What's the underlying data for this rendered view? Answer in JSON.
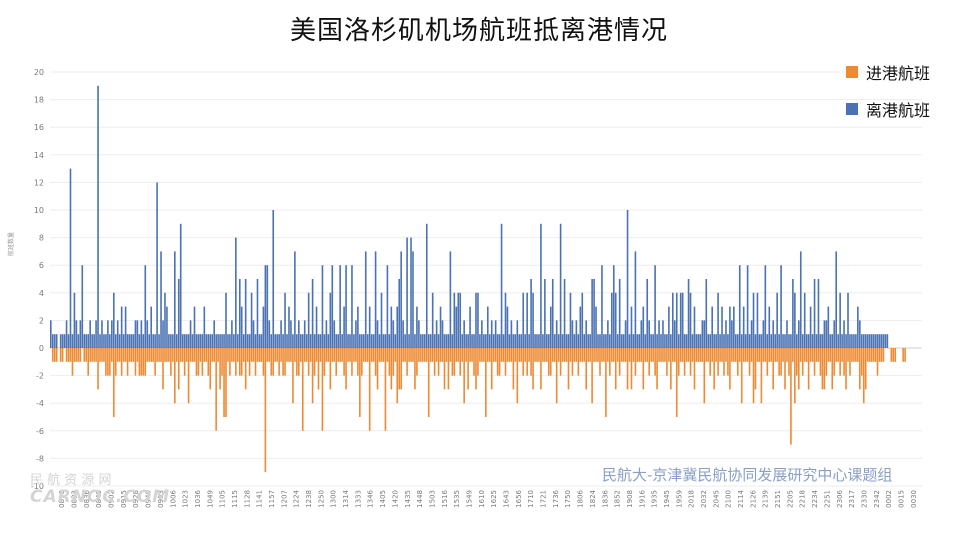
{
  "title": "美国洛杉矶机场航班抵离港情况",
  "footer_note": "民航大-京津冀民航协同发展研究中心课题组",
  "watermark": {
    "line1": "民 航 资 源 网",
    "line2": "CARNOC.COM"
  },
  "chart_data": {
    "type": "bar",
    "title": "美国洛杉矶机场航班抵离港情况",
    "ylabel": "航班数量",
    "xlabel": "",
    "ylim": [
      -10,
      20
    ],
    "yticks": [
      -10,
      -8,
      -6,
      -4,
      -2,
      0,
      2,
      4,
      6,
      8,
      10,
      12,
      14,
      16,
      18,
      20
    ],
    "grid": true,
    "legend_position": "top-right",
    "x_tick_labels": [
      "0810",
      "0823",
      "0836",
      "0849",
      "0902",
      "0915",
      "0928",
      "0940",
      "0953",
      "1006",
      "1023",
      "1036",
      "1049",
      "1105",
      "1115",
      "1128",
      "1141",
      "1157",
      "1207",
      "1224",
      "1238",
      "1250",
      "1300",
      "1314",
      "1333",
      "1346",
      "1405",
      "1420",
      "1435",
      "1448",
      "1503",
      "1516",
      "1535",
      "1549",
      "1610",
      "1625",
      "1643",
      "1656",
      "1710",
      "1721",
      "1736",
      "1750",
      "1806",
      "1824",
      "1836",
      "1852",
      "1908",
      "1916",
      "1935",
      "1945",
      "1959",
      "2018",
      "2032",
      "2045",
      "2100",
      "2114",
      "2126",
      "2139",
      "2151",
      "2205",
      "2218",
      "2234",
      "2251",
      "2306",
      "2317",
      "2330",
      "2342",
      "0002",
      "0015",
      "0030"
    ],
    "series": [
      {
        "name": "进港航班",
        "color": "#ed8b35",
        "values": [
          0,
          -1,
          -1,
          -1,
          0,
          -1,
          -1,
          0,
          -1,
          -1,
          -1,
          -2,
          -1,
          -1,
          -1,
          -1,
          0,
          -1,
          -1,
          -2,
          -1,
          -1,
          -1,
          -1,
          -3,
          -1,
          -1,
          -1,
          -2,
          -2,
          -2,
          -1,
          -5,
          -2,
          -1,
          -1,
          -2,
          -1,
          -1,
          -2,
          -1,
          -1,
          -1,
          -2,
          -1,
          -2,
          -2,
          -2,
          -2,
          -1,
          -1,
          -1,
          -1,
          -2,
          -1,
          -1,
          -1,
          -3,
          -1,
          -1,
          -1,
          -2,
          -1,
          -4,
          -1,
          -3,
          -1,
          -1,
          -2,
          -1,
          -4,
          -1,
          -1,
          -1,
          -2,
          -2,
          -1,
          -2,
          -1,
          -1,
          -2,
          -3,
          -1,
          -1,
          -6,
          -1,
          -3,
          -2,
          -5,
          -5,
          -1,
          -2,
          -1,
          -1,
          -2,
          -1,
          -2,
          -2,
          -1,
          -3,
          -1,
          -2,
          -1,
          -1,
          -2,
          -1,
          -1,
          -1,
          -2,
          -9,
          -1,
          -1,
          -2,
          -2,
          -1,
          -1,
          -2,
          -1,
          -2,
          -2,
          -1,
          -1,
          -1,
          -4,
          -1,
          -2,
          -2,
          -1,
          -6,
          -1,
          -1,
          -2,
          -1,
          -4,
          -2,
          -1,
          -3,
          -1,
          -6,
          -2,
          -1,
          -1,
          -3,
          -1,
          -1,
          -2,
          -1,
          -1,
          -1,
          -2,
          -3,
          -1,
          -1,
          -2,
          -1,
          -1,
          -2,
          -5,
          -2,
          -1,
          -1,
          -1,
          -6,
          -1,
          -1,
          -2,
          -3,
          -1,
          -1,
          -1,
          -6,
          -1,
          -2,
          -3,
          -2,
          -1,
          -4,
          -3,
          -3,
          -1,
          -1,
          -2,
          -1,
          -1,
          -1,
          -3,
          -2,
          -1,
          -1,
          -1,
          -1,
          -1,
          -5,
          -1,
          -1,
          -2,
          -1,
          -2,
          -1,
          -1,
          -3,
          -1,
          -3,
          -1,
          -2,
          -2,
          -1,
          -1,
          -2,
          -1,
          -4,
          -1,
          -3,
          -1,
          -1,
          -2,
          -3,
          -2,
          -1,
          -1,
          -1,
          -5,
          -1,
          -1,
          -3,
          -1,
          -1,
          -2,
          -2,
          -1,
          -1,
          -2,
          -1,
          -1,
          -1,
          -3,
          -1,
          -4,
          -1,
          -1,
          -2,
          -1,
          -2,
          -1,
          -2,
          -3,
          -1,
          -1,
          -1,
          -3,
          -1,
          -1,
          -1,
          -2,
          -2,
          -1,
          -1,
          -4,
          -1,
          -2,
          -1,
          -1,
          -1,
          -3,
          -1,
          -2,
          -1,
          -1,
          -2,
          -1,
          -1,
          -1,
          -3,
          -1,
          -1,
          -4,
          -1,
          -1,
          -1,
          -2,
          -1,
          -1,
          -5,
          -1,
          -2,
          -1,
          -1,
          -3,
          -1,
          -2,
          -1,
          -1,
          -1,
          -3,
          -1,
          -3,
          -1,
          -2,
          -1,
          -1,
          -1,
          -3,
          -1,
          -1,
          -2,
          -1,
          -1,
          -2,
          -3,
          -1,
          -1,
          -1,
          -1,
          -2,
          -1,
          -3,
          -1,
          -1,
          -5,
          -2,
          -1,
          -1,
          -2,
          -1,
          -1,
          -2,
          -1,
          -3,
          -1,
          -1,
          -1,
          -1,
          -4,
          -1,
          -1,
          -2,
          -1,
          -3,
          -1,
          -2,
          -1,
          -1,
          -2,
          -1,
          -2,
          -3,
          -1,
          -1,
          -1,
          -2,
          -1,
          -4,
          -1,
          -1,
          -1,
          -2,
          -1,
          -4,
          -3,
          -1,
          -1,
          -4,
          -1,
          -1,
          -2,
          -1,
          -1,
          -3,
          -1,
          -1,
          -2,
          -2,
          -1,
          -3,
          -1,
          -2,
          -7,
          -1,
          -4,
          -2,
          -3,
          -1,
          -2,
          -1,
          -1,
          -3,
          -1,
          -1,
          -2,
          -1,
          -1,
          -2,
          -3,
          -3,
          -2,
          -1,
          -1,
          -3,
          -2,
          -1,
          -1,
          -2,
          -1,
          -2,
          -3,
          -1,
          -2,
          -1,
          -1,
          -1,
          -1,
          -3,
          -2,
          -4,
          -3,
          -1,
          -1,
          -1,
          -1,
          -1,
          -2,
          -1,
          -1,
          -1,
          0,
          0,
          0,
          -1,
          -1,
          -1,
          0,
          0,
          0,
          -1,
          -1,
          0,
          0,
          0,
          0,
          0,
          0,
          0,
          0
        ],
        "note": "one bar per minute interval across the day; values read approximately from the axis"
      },
      {
        "name": "离港航班",
        "color": "#4a72b5",
        "values": [
          2,
          1,
          1,
          1,
          0,
          1,
          1,
          1,
          2,
          1,
          13,
          1,
          4,
          2,
          1,
          2,
          6,
          1,
          1,
          1,
          2,
          1,
          1,
          2,
          19,
          1,
          2,
          1,
          1,
          2,
          1,
          2,
          4,
          1,
          2,
          1,
          3,
          1,
          3,
          1,
          1,
          1,
          1,
          2,
          2,
          1,
          2,
          1,
          6,
          2,
          1,
          3,
          1,
          1,
          12,
          1,
          7,
          2,
          4,
          3,
          1,
          1,
          1,
          7,
          1,
          5,
          9,
          1,
          1,
          1,
          1,
          2,
          1,
          3,
          1,
          1,
          1,
          1,
          3,
          1,
          1,
          1,
          1,
          2,
          1,
          1,
          1,
          1,
          1,
          4,
          1,
          1,
          2,
          1,
          8,
          1,
          5,
          3,
          1,
          5,
          1,
          1,
          4,
          2,
          1,
          5,
          1,
          1,
          3,
          6,
          6,
          2,
          1,
          10,
          1,
          1,
          1,
          2,
          1,
          4,
          1,
          3,
          2,
          1,
          7,
          1,
          2,
          1,
          1,
          2,
          1,
          4,
          1,
          5,
          1,
          3,
          1,
          1,
          6,
          1,
          2,
          1,
          4,
          6,
          2,
          1,
          1,
          6,
          1,
          3,
          6,
          1,
          1,
          6,
          1,
          2,
          3,
          1,
          1,
          1,
          7,
          1,
          3,
          1,
          1,
          7,
          2,
          1,
          4,
          1,
          1,
          6,
          1,
          3,
          2,
          1,
          3,
          5,
          7,
          2,
          1,
          8,
          1,
          8,
          7,
          1,
          3,
          2,
          1,
          1,
          1,
          9,
          1,
          1,
          4,
          1,
          2,
          1,
          3,
          2,
          1,
          1,
          1,
          7,
          1,
          4,
          3,
          4,
          4,
          1,
          2,
          1,
          1,
          3,
          1,
          1,
          4,
          4,
          1,
          2,
          1,
          1,
          3,
          1,
          2,
          1,
          2,
          1,
          1,
          9,
          1,
          4,
          3,
          1,
          2,
          1,
          1,
          2,
          1,
          1,
          4,
          1,
          4,
          1,
          5,
          4,
          1,
          1,
          1,
          9,
          1,
          5,
          1,
          1,
          3,
          5,
          1,
          2,
          1,
          9,
          1,
          5,
          1,
          1,
          4,
          2,
          1,
          2,
          1,
          3,
          4,
          1,
          2,
          1,
          1,
          5,
          5,
          3,
          1,
          1,
          6,
          1,
          1,
          2,
          1,
          4,
          6,
          4,
          1,
          5,
          1,
          1,
          2,
          10,
          1,
          3,
          1,
          7,
          1,
          1,
          2,
          3,
          1,
          5,
          2,
          1,
          1,
          6,
          1,
          2,
          1,
          2,
          1,
          1,
          3,
          1,
          4,
          2,
          4,
          1,
          4,
          4,
          1,
          1,
          5,
          4,
          1,
          3,
          1,
          1,
          1,
          2,
          2,
          5,
          1,
          1,
          3,
          1,
          1,
          4,
          1,
          3,
          1,
          2,
          1,
          3,
          2,
          3,
          1,
          1,
          6,
          1,
          3,
          1,
          6,
          1,
          2,
          4,
          1,
          4,
          1,
          1,
          2,
          6,
          1,
          3,
          1,
          2,
          1,
          4,
          1,
          6,
          1,
          1,
          2,
          1,
          1,
          5,
          4,
          1,
          2,
          7,
          1,
          4,
          1,
          1,
          3,
          1,
          5,
          1,
          5,
          1,
          1,
          2,
          2,
          3,
          1,
          1,
          2,
          7,
          1,
          4,
          1,
          2,
          1,
          4,
          1,
          1,
          1,
          1,
          3,
          2,
          1,
          1,
          1,
          1,
          1,
          1,
          1,
          1,
          1,
          1,
          1,
          1,
          1,
          1
        ]
      }
    ]
  }
}
